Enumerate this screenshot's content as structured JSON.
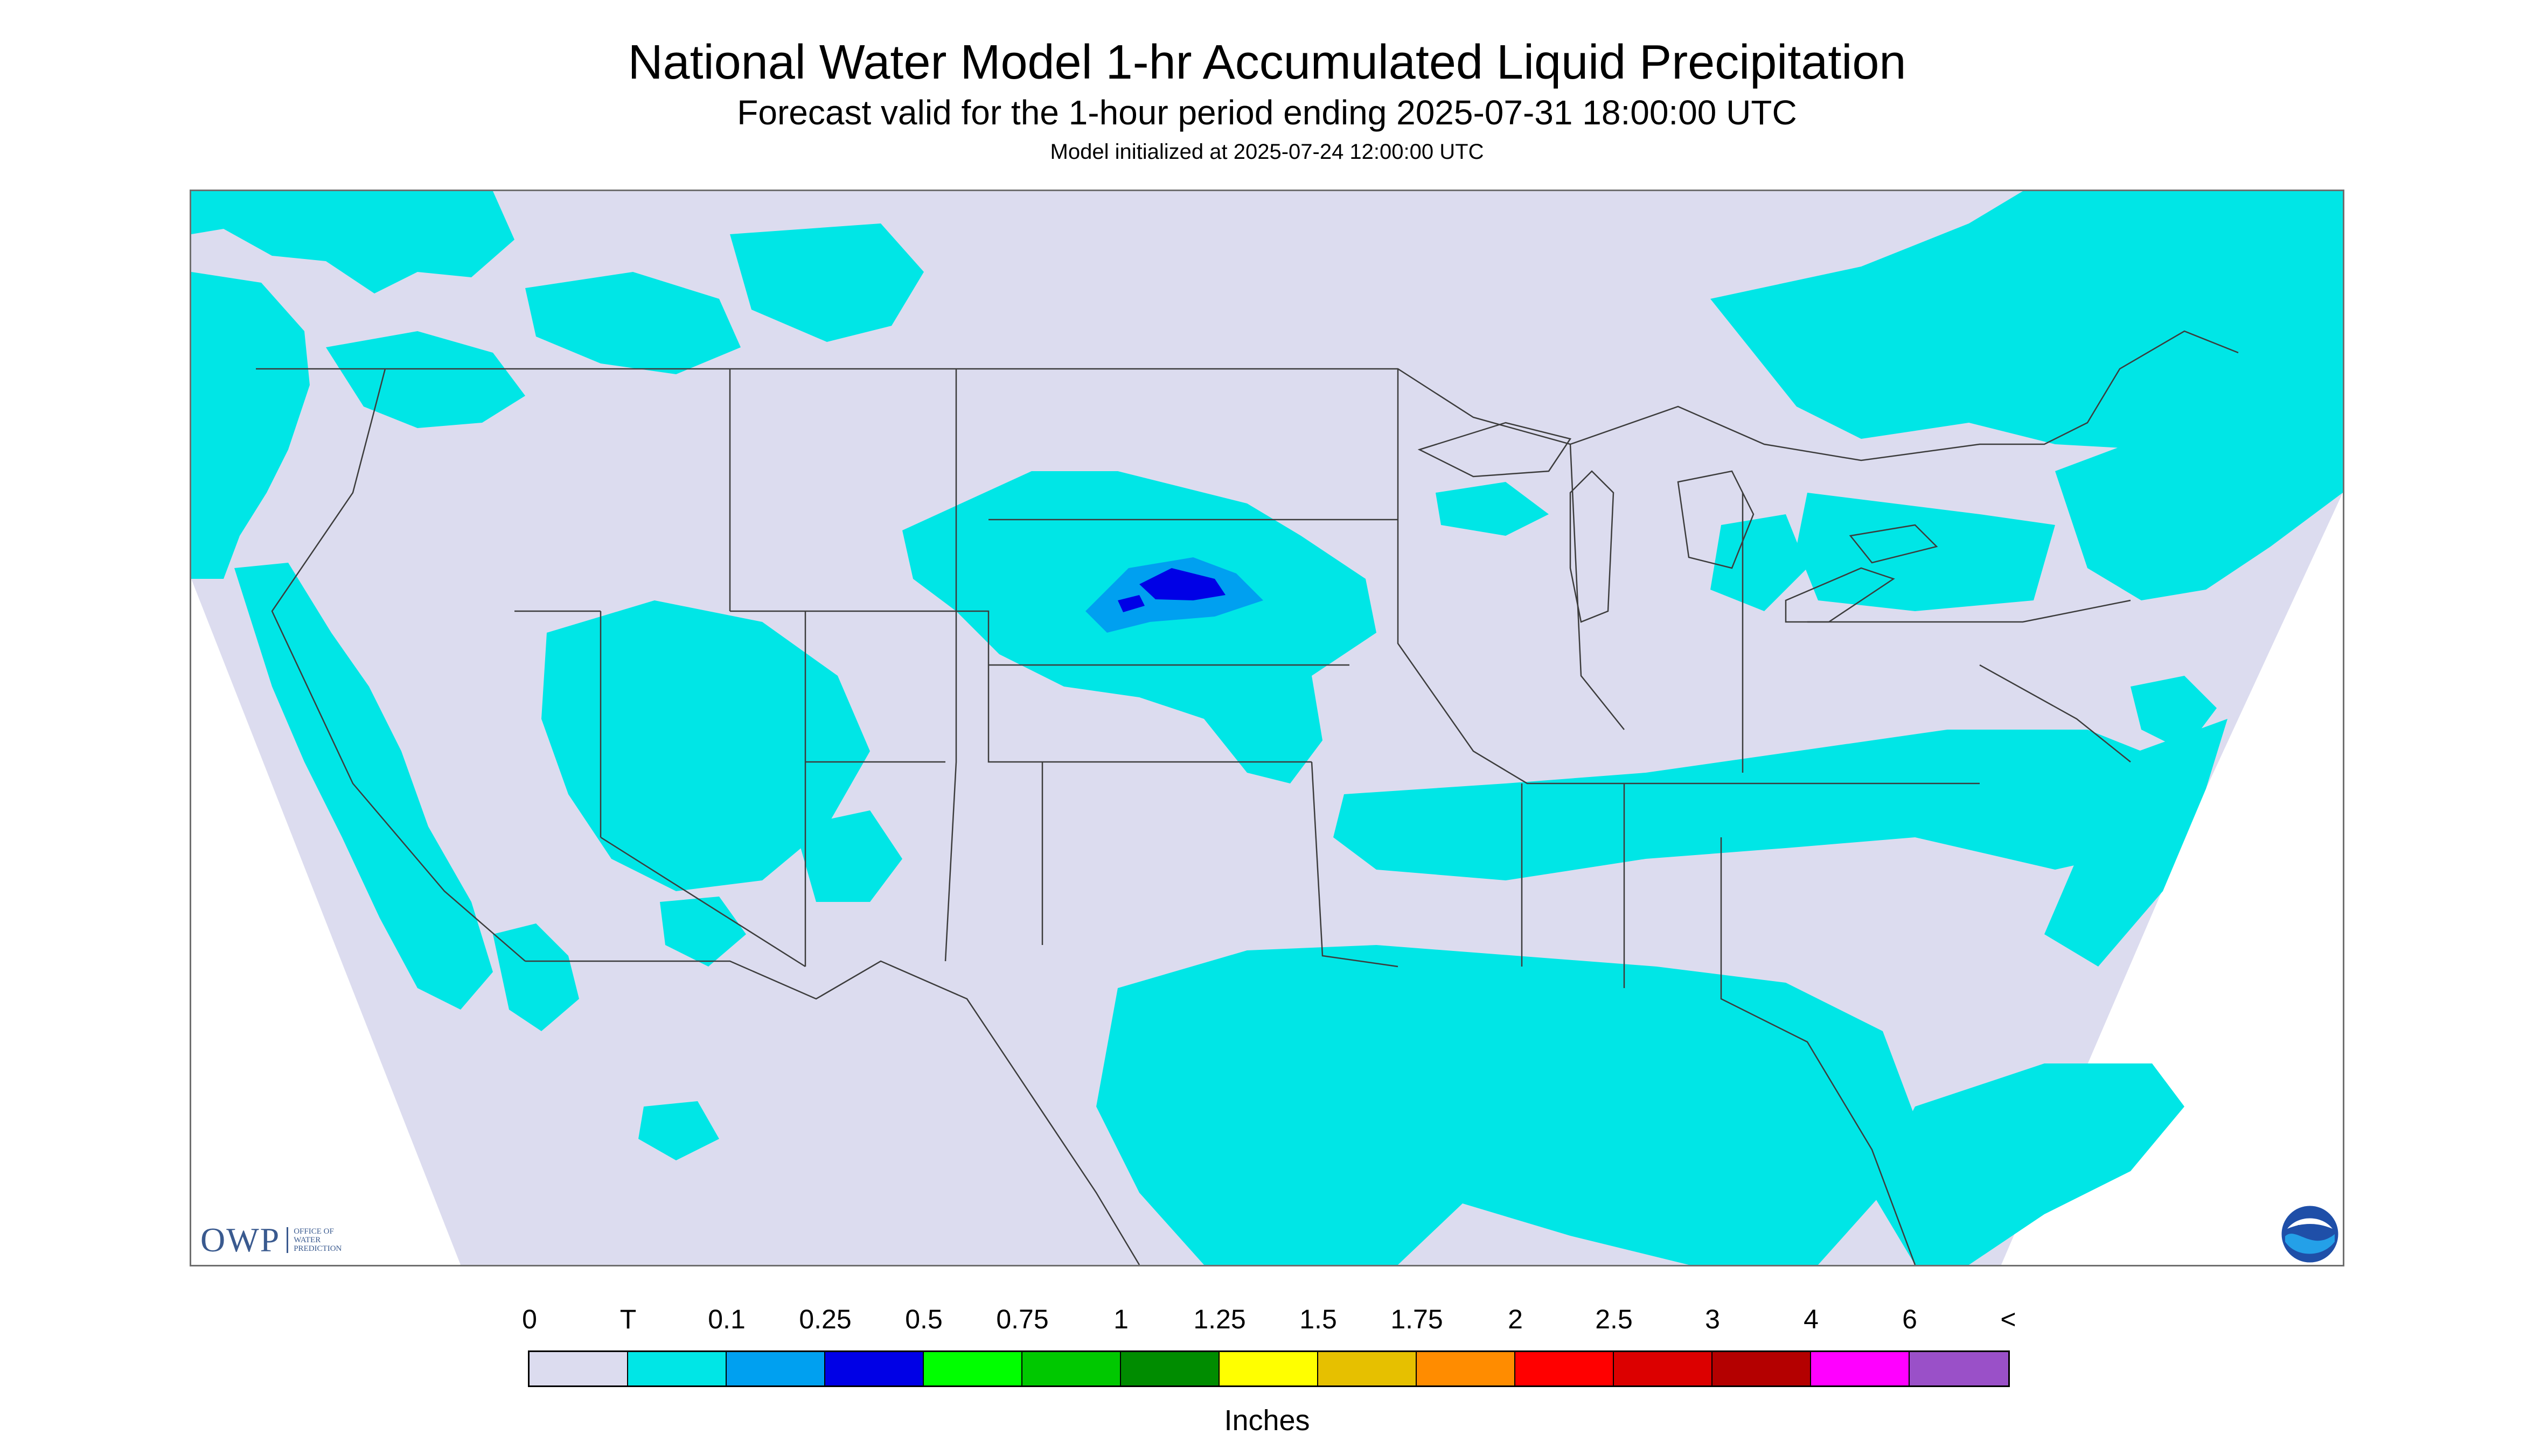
{
  "header": {
    "title": "National Water Model 1-hr Accumulated Liquid Precipitation",
    "subtitle": "Forecast valid for the 1-hour period ending 2025-07-31 18:00:00 UTC",
    "init": "Model initialized at 2025-07-24 12:00:00 UTC"
  },
  "map": {
    "background_color": "#dcdcef",
    "trace_color": "#00e6e6",
    "light_blue_color": "#00a0f0",
    "blue_color": "#0000e6",
    "border_color": "#3c3c3c"
  },
  "logos": {
    "owp_big": "OWP",
    "owp_small": "OFFICE OF WATER PREDICTION",
    "noaa": "NOAA"
  },
  "legend": {
    "labels": [
      "0",
      "T",
      "0.1",
      "0.25",
      "0.5",
      "0.75",
      "1",
      "1.25",
      "1.5",
      "1.75",
      "2",
      "2.5",
      "3",
      "4",
      "6",
      "<"
    ],
    "colors": [
      "#dcdcef",
      "#00e6e6",
      "#00a0f0",
      "#0000e6",
      "#00ff00",
      "#00c800",
      "#008c00",
      "#ffff00",
      "#e6c000",
      "#ff8c00",
      "#ff0000",
      "#dc0000",
      "#b40000",
      "#ff00ff",
      "#9a50c8"
    ],
    "units": "Inches"
  }
}
